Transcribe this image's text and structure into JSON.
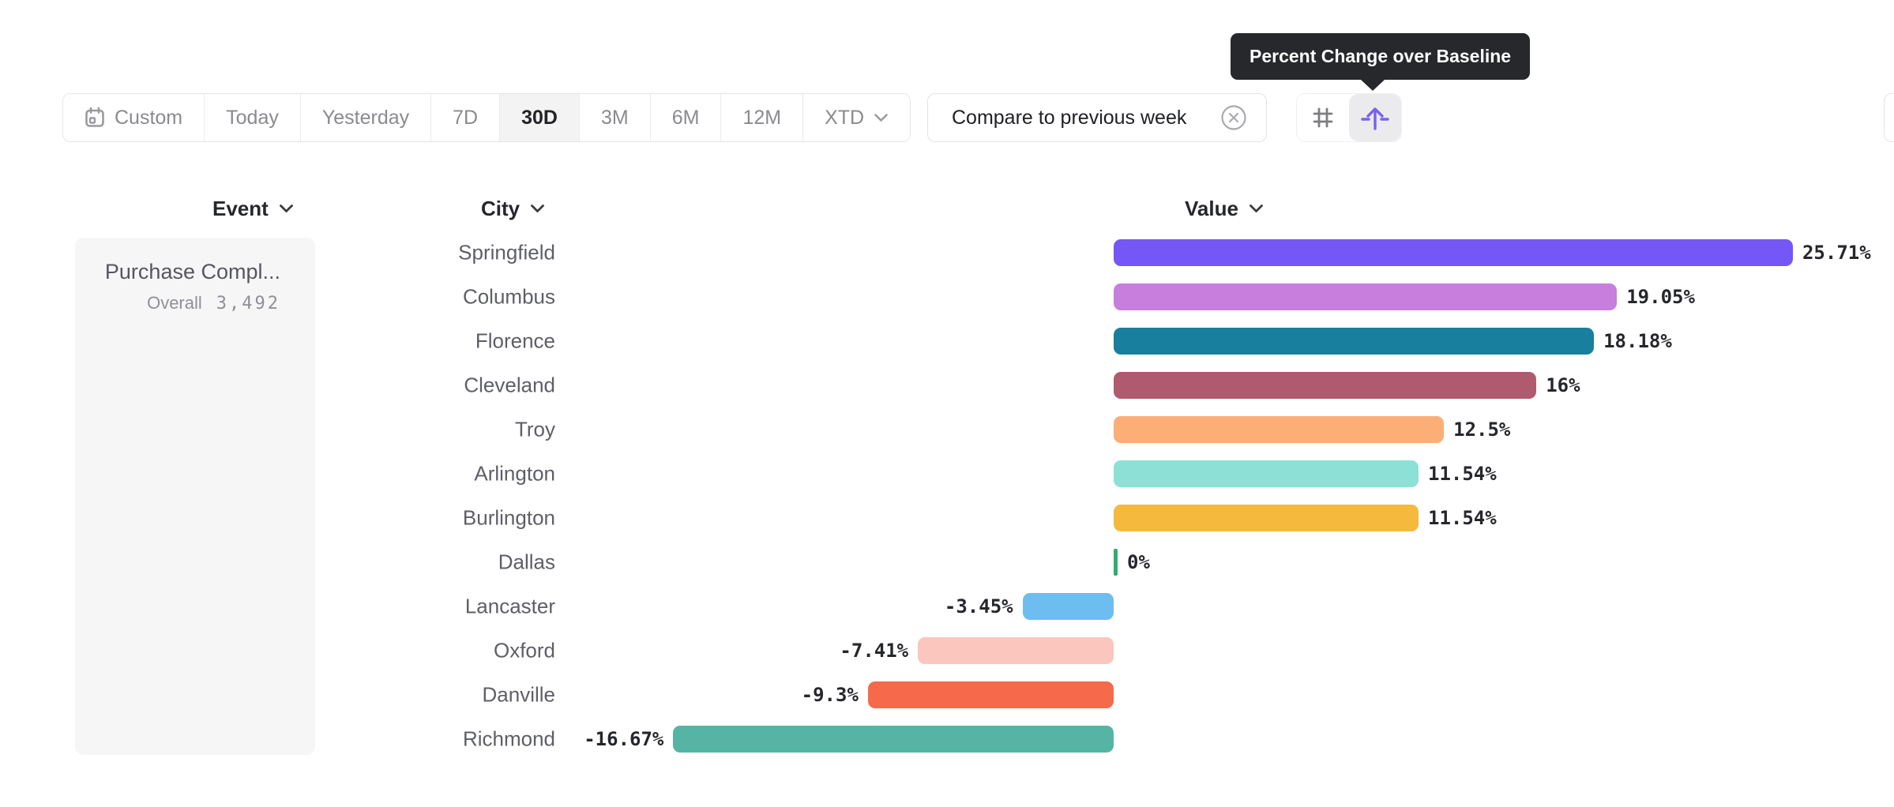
{
  "tooltip": {
    "text": "Percent Change over Baseline",
    "bg_color": "#27282C"
  },
  "toolbar": {
    "date_ranges": [
      {
        "label": "Custom",
        "selected": false,
        "icon": "calendar"
      },
      {
        "label": "Today",
        "selected": false
      },
      {
        "label": "Yesterday",
        "selected": false
      },
      {
        "label": "7D",
        "selected": false
      },
      {
        "label": "30D",
        "selected": true
      },
      {
        "label": "3M",
        "selected": false
      },
      {
        "label": "6M",
        "selected": false
      },
      {
        "label": "12M",
        "selected": false
      },
      {
        "label": "XTD",
        "selected": false,
        "chevron": true
      }
    ],
    "compare": {
      "label": "Compare to previous week"
    },
    "view_modes": [
      {
        "name": "hash",
        "selected": false
      },
      {
        "name": "percent-change-baseline",
        "selected": true
      }
    ],
    "accent_color": "#7B61F0"
  },
  "columns": [
    {
      "label": "Event"
    },
    {
      "label": "City"
    },
    {
      "label": "Value"
    }
  ],
  "event_card": {
    "title": "Purchase Compl...",
    "metric_label": "Overall",
    "metric_value": "3,492"
  },
  "chart_data": {
    "type": "bar",
    "orientation": "horizontal",
    "title": "Percent Change over Baseline",
    "series_name": "Purchase Compl...",
    "group_by": "City",
    "value_axis": "Value",
    "categories": [
      "Springfield",
      "Columbus",
      "Florence",
      "Cleveland",
      "Troy",
      "Arlington",
      "Burlington",
      "Dallas",
      "Lancaster",
      "Oxford",
      "Danville",
      "Richmond"
    ],
    "values": [
      25.71,
      19.05,
      18.18,
      16,
      12.5,
      11.54,
      11.54,
      0,
      -3.45,
      -7.41,
      -9.3,
      -16.67
    ],
    "value_labels": [
      "25.71%",
      "19.05%",
      "18.18%",
      "16%",
      "12.5%",
      "11.54%",
      "11.54%",
      "0%",
      "-3.45%",
      "-7.41%",
      "-9.3%",
      "-16.67%"
    ],
    "bar_colors": [
      "#7557F7",
      "#C77EDC",
      "#187F9E",
      "#B05A70",
      "#FBAE76",
      "#8CE0D6",
      "#F5B93E",
      "#2EAD6E",
      "#6DBDF0",
      "#FAC6BE",
      "#F6694B",
      "#56B4A5"
    ],
    "xlim": [
      -18,
      27
    ],
    "grid": false,
    "legend": false
  }
}
